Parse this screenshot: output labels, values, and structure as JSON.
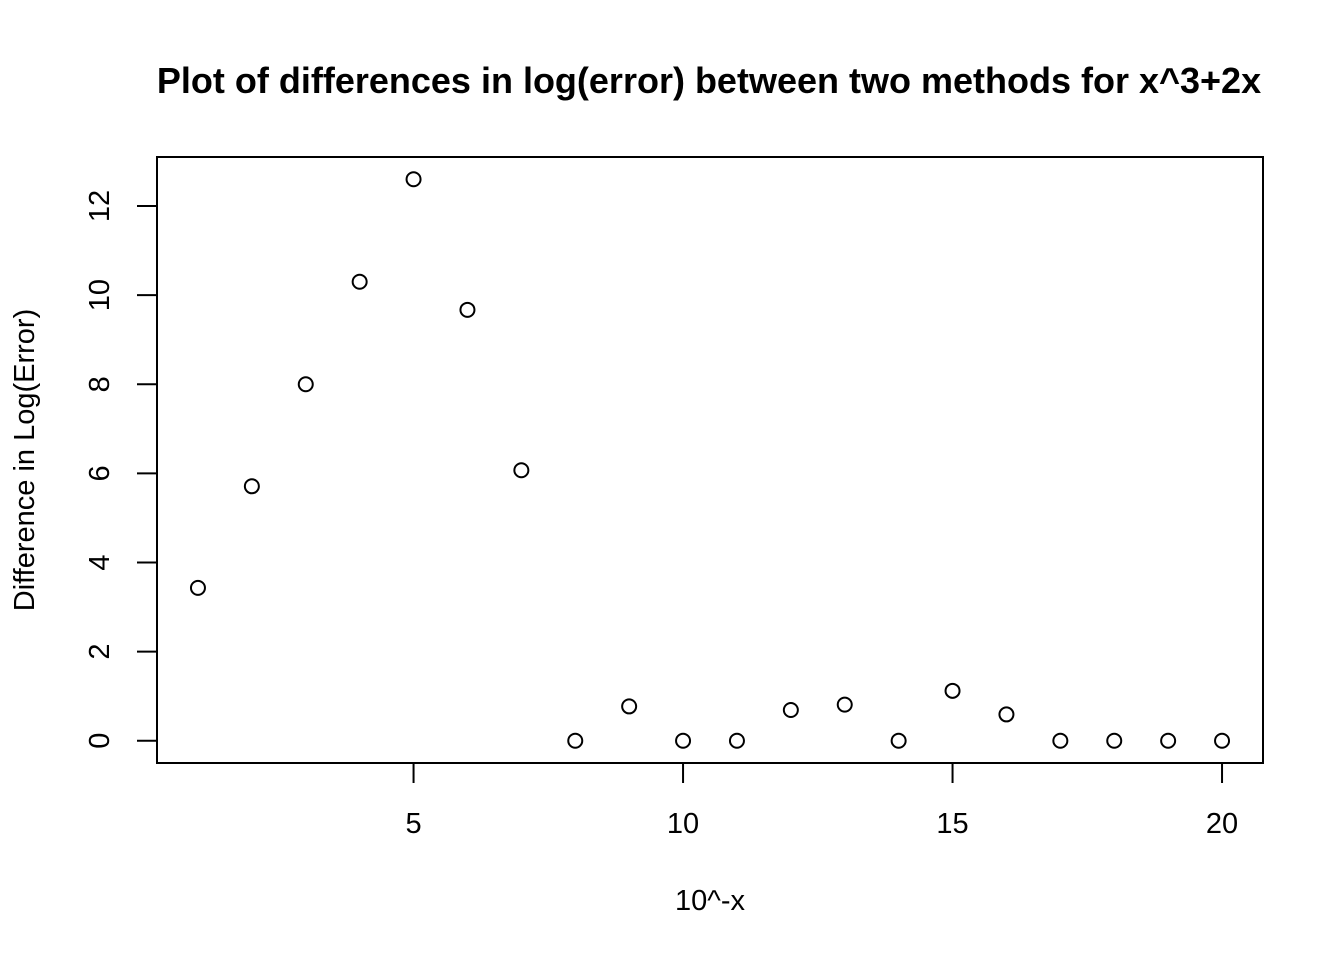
{
  "chart_data": {
    "type": "scatter",
    "title": "Plot of differences in log(error) between two methods for x^3+2x",
    "xlabel": "10^-x",
    "ylabel": "Difference in Log(Error)",
    "x": [
      1,
      2,
      3,
      4,
      5,
      6,
      7,
      8,
      9,
      10,
      11,
      12,
      13,
      14,
      15,
      16,
      17,
      18,
      19,
      20
    ],
    "y": [
      3.43,
      5.71,
      8.0,
      10.3,
      12.6,
      9.67,
      6.07,
      0.0,
      0.77,
      0.0,
      0.0,
      0.69,
      0.81,
      0.0,
      1.12,
      0.59,
      0.0,
      0.0,
      0.0,
      0.0
    ],
    "xlim": [
      0.24,
      20.76
    ],
    "ylim": [
      -0.5,
      13.1
    ],
    "xticks": [
      5,
      10,
      15,
      20
    ],
    "yticks": [
      0,
      2,
      4,
      6,
      8,
      10,
      12
    ],
    "marker": "open-circle",
    "grid": false,
    "legend": "none"
  }
}
